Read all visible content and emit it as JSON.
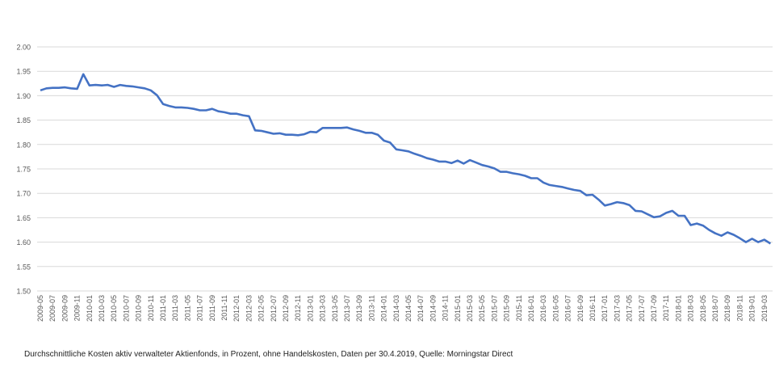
{
  "chart_data": {
    "type": "line",
    "title": "",
    "xlabel": "",
    "ylabel": "",
    "ylim": [
      1.5,
      2.0
    ],
    "y_ticks": [
      "1.50",
      "1.55",
      "1.60",
      "1.65",
      "1.70",
      "1.75",
      "1.80",
      "1.85",
      "1.90",
      "1.95",
      "2.00"
    ],
    "grid": true,
    "line_color": "#4472C4",
    "x_start": "2009-05",
    "tick_labels": [
      "2009-05",
      "2009-07",
      "2009-09",
      "2009-11",
      "2010-01",
      "2010-03",
      "2010-05",
      "2010-07",
      "2010-09",
      "2010-11",
      "2011-01",
      "2011-03",
      "2011-05",
      "2011-07",
      "2011-09",
      "2011-11",
      "2012-01",
      "2012-03",
      "2012-05",
      "2012-07",
      "2012-09",
      "2012-11",
      "2013-01",
      "2013-03",
      "2013-05",
      "2013-07",
      "2013-09",
      "2013-11",
      "2014-01",
      "2014-03",
      "2014-05",
      "2014-07",
      "2014-09",
      "2014-11",
      "2015-01",
      "2015-03",
      "2015-05",
      "2015-07",
      "2015-09",
      "2015-11",
      "2016-01",
      "2016-03",
      "2016-05",
      "2016-07",
      "2016-09",
      "2016-11",
      "2017-01",
      "2017-03",
      "2017-05",
      "2017-07",
      "2017-09",
      "2017-11",
      "2018-01",
      "2018-03",
      "2018-05",
      "2018-07",
      "2018-09",
      "2018-11",
      "2019-01",
      "2019-03"
    ],
    "series": [
      {
        "name": "Durchschnittliche Kosten",
        "values": [
          1.911,
          1.915,
          1.916,
          1.916,
          1.917,
          1.915,
          1.914,
          1.944,
          1.921,
          1.922,
          1.921,
          1.922,
          1.918,
          1.922,
          1.92,
          1.919,
          1.917,
          1.915,
          1.911,
          1.901,
          1.883,
          1.879,
          1.876,
          1.876,
          1.875,
          1.873,
          1.87,
          1.87,
          1.873,
          1.868,
          1.866,
          1.863,
          1.863,
          1.86,
          1.858,
          1.829,
          1.828,
          1.825,
          1.822,
          1.823,
          1.82,
          1.82,
          1.819,
          1.821,
          1.826,
          1.825,
          1.834,
          1.834,
          1.834,
          1.834,
          1.835,
          1.831,
          1.828,
          1.824,
          1.824,
          1.82,
          1.808,
          1.804,
          1.79,
          1.788,
          1.786,
          1.781,
          1.777,
          1.772,
          1.769,
          1.765,
          1.765,
          1.762,
          1.767,
          1.761,
          1.768,
          1.763,
          1.758,
          1.755,
          1.751,
          1.744,
          1.744,
          1.741,
          1.739,
          1.736,
          1.731,
          1.731,
          1.722,
          1.717,
          1.715,
          1.713,
          1.71,
          1.707,
          1.705,
          1.696,
          1.697,
          1.687,
          1.675,
          1.678,
          1.682,
          1.68,
          1.676,
          1.664,
          1.663,
          1.657,
          1.651,
          1.653,
          1.66,
          1.664,
          1.654,
          1.654,
          1.635,
          1.638,
          1.634,
          1.625,
          1.618,
          1.613,
          1.62,
          1.615,
          1.608,
          1.6,
          1.607,
          1.6,
          1.605,
          1.597
        ]
      }
    ],
    "caption": "Durchschnittliche Kosten aktiv verwalteter Aktienfonds, in Prozent, ohne Handelskosten, Daten per 30.4.2019, Quelle: Morningstar Direct"
  }
}
